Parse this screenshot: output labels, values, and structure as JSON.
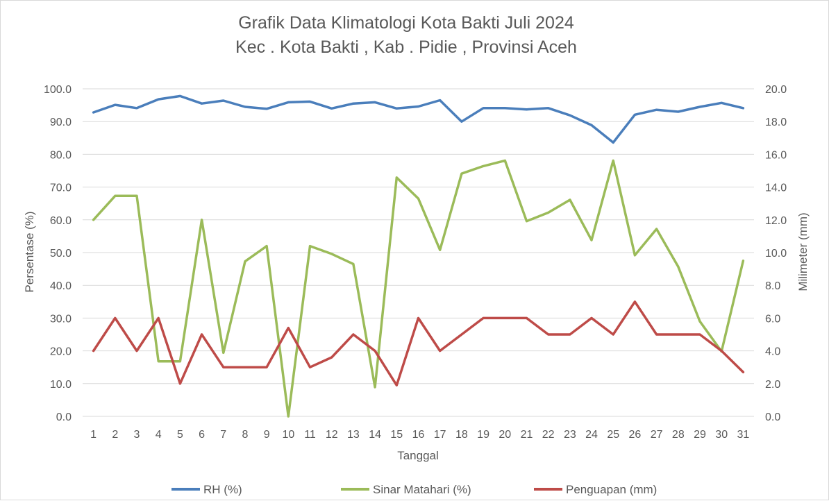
{
  "chart_data": {
    "type": "line",
    "title": "Grafik Data Klimatologi Kota Bakti Juli 2024",
    "subtitle": "Kec . Kota Bakti , Kab . Pidie , Provinsi  Aceh",
    "xlabel": "Tanggal",
    "ylabel_left": "Persentase (%)",
    "ylabel_right": "Milimeter (mm)",
    "ylim_left": [
      0,
      100
    ],
    "ylim_right": [
      0,
      20
    ],
    "yticks_left": [
      "0.0",
      "10.0",
      "20.0",
      "30.0",
      "40.0",
      "50.0",
      "60.0",
      "70.0",
      "80.0",
      "90.0",
      "100.0"
    ],
    "yticks_right": [
      "0.0",
      "2.0",
      "4.0",
      "6.0",
      "8.0",
      "10.0",
      "12.0",
      "14.0",
      "16.0",
      "18.0",
      "20.0"
    ],
    "grid": true,
    "legend_position": "bottom",
    "categories": [
      "1",
      "2",
      "3",
      "4",
      "5",
      "6",
      "7",
      "8",
      "9",
      "10",
      "11",
      "12",
      "13",
      "14",
      "15",
      "16",
      "17",
      "18",
      "19",
      "20",
      "21",
      "22",
      "23",
      "24",
      "25",
      "26",
      "27",
      "28",
      "29",
      "30",
      "31"
    ],
    "series": [
      {
        "name": "RH (%)",
        "axis": "left",
        "color": "#4a7ebb",
        "values": [
          92.8,
          95.1,
          94.1,
          96.8,
          97.8,
          95.5,
          96.4,
          94.5,
          93.9,
          95.9,
          96.1,
          94.0,
          95.5,
          95.9,
          94.0,
          94.6,
          96.5,
          90.0,
          94.1,
          94.1,
          93.7,
          94.1,
          91.9,
          88.9,
          83.6,
          92.1,
          93.6,
          93.0,
          94.5,
          95.7,
          94.1
        ]
      },
      {
        "name": "Sinar Matahari (%)",
        "axis": "left",
        "color": "#9bbb59",
        "values": [
          60.0,
          67.3,
          67.3,
          16.8,
          16.8,
          60.0,
          19.4,
          47.3,
          52.0,
          0.0,
          52.0,
          49.6,
          46.5,
          8.9,
          72.9,
          66.5,
          50.8,
          74.1,
          76.4,
          78.1,
          59.6,
          62.2,
          66.1,
          53.8,
          78.1,
          49.2,
          57.2,
          45.7,
          29.0,
          19.8,
          47.5
        ]
      },
      {
        "name": "Penguapan (mm)",
        "axis": "right",
        "color": "#be4b48",
        "values": [
          4.0,
          6.0,
          4.0,
          6.0,
          2.0,
          5.0,
          3.0,
          3.0,
          3.0,
          5.4,
          3.0,
          3.6,
          5.0,
          4.0,
          1.9,
          6.0,
          4.0,
          5.0,
          6.0,
          6.0,
          6.0,
          5.0,
          5.0,
          6.0,
          5.0,
          7.0,
          5.0,
          5.0,
          5.0,
          4.0,
          2.7
        ]
      }
    ]
  }
}
